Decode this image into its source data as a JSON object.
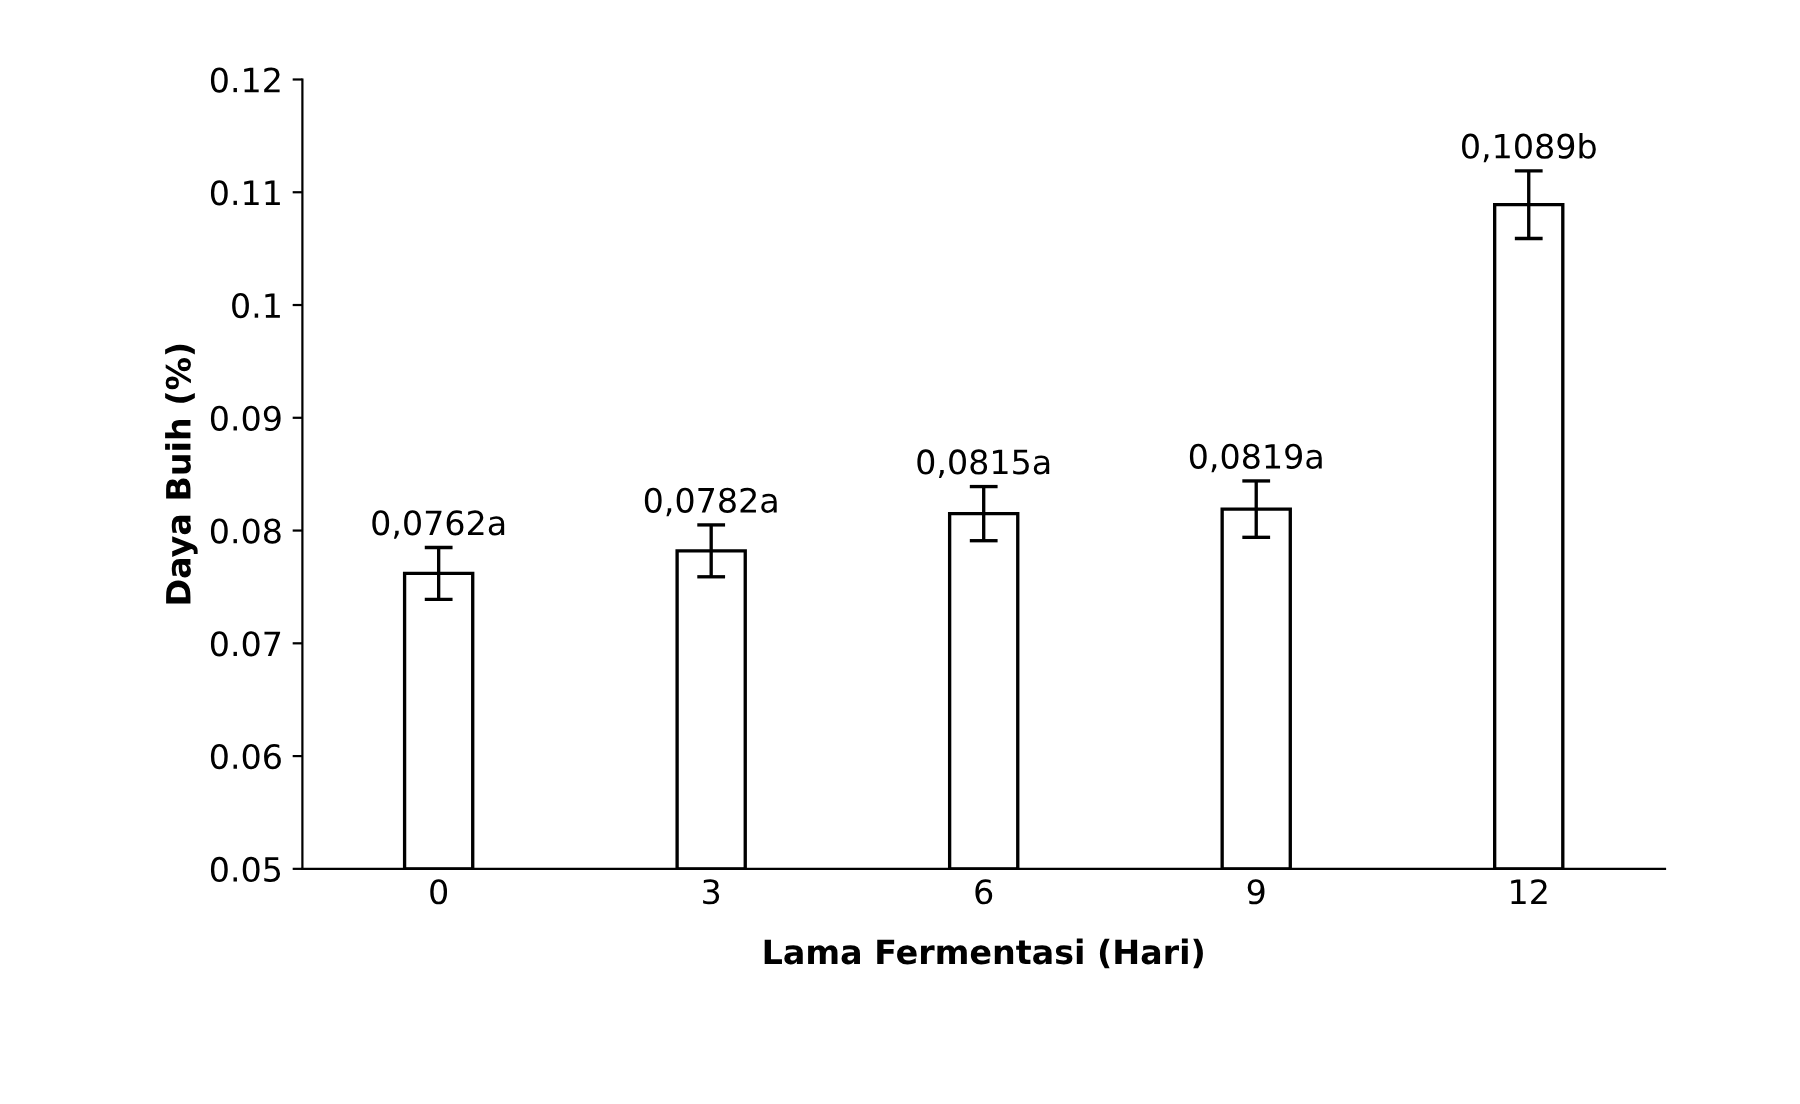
{
  "chart_data": {
    "type": "bar",
    "xlabel": "Lama Fermentasi (Hari)",
    "ylabel": "Daya Buih (%)",
    "categories": [
      "0",
      "3",
      "6",
      "9",
      "12"
    ],
    "values": [
      0.0762,
      0.0782,
      0.0815,
      0.0819,
      0.1089
    ],
    "errors": [
      0.0023,
      0.0023,
      0.0024,
      0.0025,
      0.003
    ],
    "value_labels": [
      "0,0762a",
      "0,0782a",
      "0,0815a",
      "0,0819a",
      "0,1089b"
    ],
    "color": "#ffffff",
    "ylim": [
      0.05,
      0.12
    ],
    "yticks": [
      0.05,
      0.06,
      0.07,
      0.08,
      0.09,
      0.1,
      0.11,
      0.12
    ],
    "grid": false,
    "legend": false
  }
}
